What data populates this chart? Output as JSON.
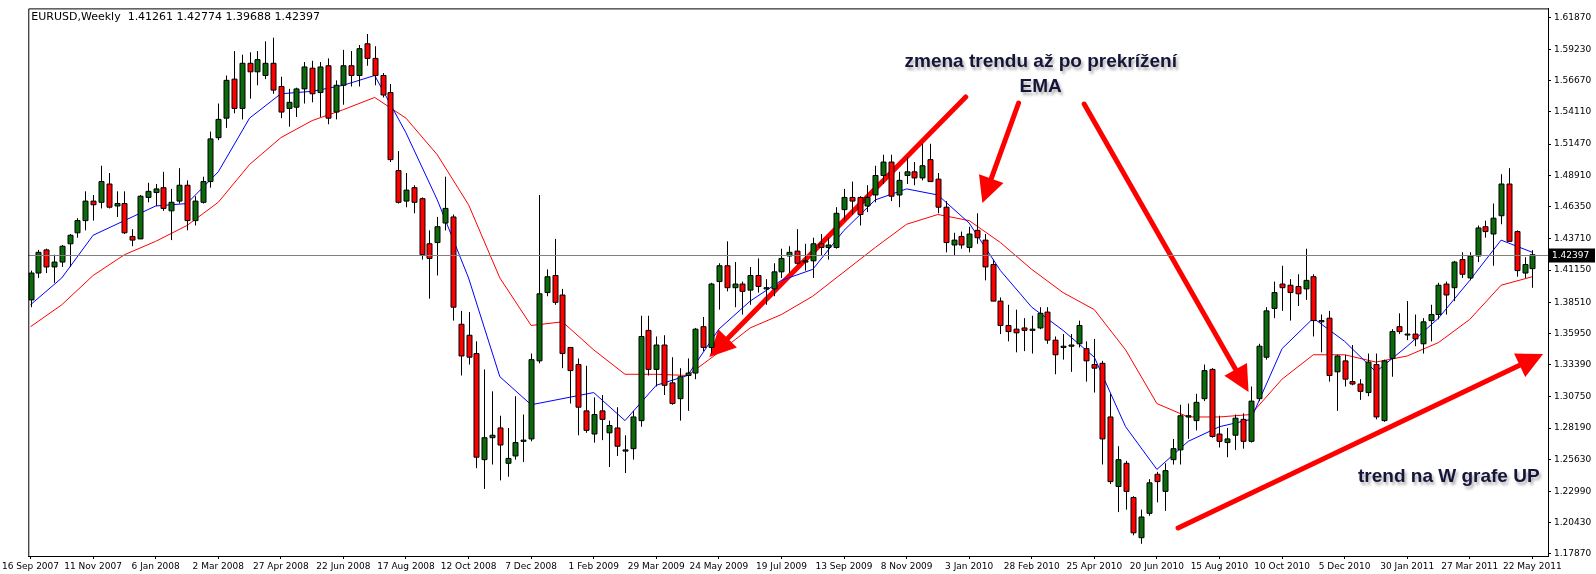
{
  "chart_data": {
    "type": "candlestick",
    "title": "EURUSD,Weekly  1.41261 1.42774 1.39688 1.42397",
    "x": [
      "2007-09-16",
      "2007-09-23",
      "2007-09-30",
      "2007-10-07",
      "2007-10-14",
      "2007-10-21",
      "2007-10-28",
      "2007-11-04",
      "2007-11-11",
      "2007-11-18",
      "2007-11-25",
      "2007-12-02",
      "2007-12-09",
      "2007-12-16",
      "2007-12-23",
      "2007-12-30",
      "2008-01-06",
      "2008-01-13",
      "2008-01-20",
      "2008-01-27",
      "2008-02-03",
      "2008-02-10",
      "2008-02-17",
      "2008-02-24",
      "2008-03-02",
      "2008-03-09",
      "2008-03-16",
      "2008-03-23",
      "2008-03-30",
      "2008-04-06",
      "2008-04-13",
      "2008-04-20",
      "2008-04-27",
      "2008-05-04",
      "2008-05-11",
      "2008-05-18",
      "2008-05-25",
      "2008-06-01",
      "2008-06-08",
      "2008-06-15",
      "2008-06-22",
      "2008-06-29",
      "2008-07-06",
      "2008-07-13",
      "2008-07-20",
      "2008-07-27",
      "2008-08-03",
      "2008-08-10",
      "2008-08-17",
      "2008-08-24",
      "2008-08-31",
      "2008-09-07",
      "2008-09-14",
      "2008-09-21",
      "2008-09-28",
      "2008-10-05",
      "2008-10-12",
      "2008-10-19",
      "2008-10-26",
      "2008-11-02",
      "2008-11-09",
      "2008-11-16",
      "2008-11-23",
      "2008-11-30",
      "2008-12-07",
      "2008-12-14",
      "2008-12-21",
      "2008-12-28",
      "2009-01-04",
      "2009-01-11",
      "2009-01-18",
      "2009-01-25",
      "2009-02-01",
      "2009-02-08",
      "2009-02-15",
      "2009-02-22",
      "2009-03-01",
      "2009-03-08",
      "2009-03-15",
      "2009-03-22",
      "2009-03-29",
      "2009-04-05",
      "2009-04-12",
      "2009-04-19",
      "2009-04-26",
      "2009-05-03",
      "2009-05-10",
      "2009-05-17",
      "2009-05-24",
      "2009-05-31",
      "2009-06-07",
      "2009-06-14",
      "2009-06-21",
      "2009-06-28",
      "2009-07-05",
      "2009-07-12",
      "2009-07-19",
      "2009-07-26",
      "2009-08-02",
      "2009-08-09",
      "2009-08-16",
      "2009-08-23",
      "2009-08-30",
      "2009-09-06",
      "2009-09-13",
      "2009-09-20",
      "2009-09-27",
      "2009-10-04",
      "2009-10-11",
      "2009-10-18",
      "2009-10-25",
      "2009-11-01",
      "2009-11-08",
      "2009-11-15",
      "2009-11-22",
      "2009-11-29",
      "2009-12-06",
      "2009-12-13",
      "2009-12-20",
      "2009-12-27",
      "2010-01-03",
      "2010-01-10",
      "2010-01-17",
      "2010-01-24",
      "2010-01-31",
      "2010-02-07",
      "2010-02-14",
      "2010-02-21",
      "2010-02-28",
      "2010-03-07",
      "2010-03-14",
      "2010-03-21",
      "2010-03-28",
      "2010-04-04",
      "2010-04-11",
      "2010-04-18",
      "2010-04-25",
      "2010-05-02",
      "2010-05-09",
      "2010-05-16",
      "2010-05-23",
      "2010-05-30",
      "2010-06-06",
      "2010-06-13",
      "2010-06-20",
      "2010-06-27",
      "2010-07-04",
      "2010-07-11",
      "2010-07-18",
      "2010-07-25",
      "2010-08-01",
      "2010-08-08",
      "2010-08-15",
      "2010-08-22",
      "2010-08-29",
      "2010-09-05",
      "2010-09-12",
      "2010-09-19",
      "2010-09-26",
      "2010-10-03",
      "2010-10-10",
      "2010-10-17",
      "2010-10-24",
      "2010-10-31",
      "2010-11-07",
      "2010-11-14",
      "2010-11-21",
      "2010-11-28",
      "2010-12-05",
      "2010-12-12",
      "2010-12-19",
      "2010-12-26",
      "2011-01-02",
      "2011-01-09",
      "2011-01-16",
      "2011-01-23",
      "2011-01-30",
      "2011-02-06",
      "2011-02-13",
      "2011-02-20",
      "2011-02-27",
      "2011-03-06",
      "2011-03-13",
      "2011-03-20",
      "2011-03-27",
      "2011-04-03",
      "2011-04-10",
      "2011-04-17",
      "2011-04-24",
      "2011-05-01",
      "2011-05-08",
      "2011-05-15",
      "2011-05-22"
    ],
    "ohlc": [
      [
        1.387,
        1.411,
        1.381,
        1.409
      ],
      [
        1.409,
        1.428,
        1.405,
        1.426
      ],
      [
        1.428,
        1.429,
        1.409,
        1.414
      ],
      [
        1.414,
        1.424,
        1.401,
        1.418
      ],
      [
        1.418,
        1.432,
        1.414,
        1.431
      ],
      [
        1.433,
        1.441,
        1.414,
        1.44
      ],
      [
        1.442,
        1.454,
        1.438,
        1.452
      ],
      [
        1.452,
        1.476,
        1.444,
        1.468
      ],
      [
        1.468,
        1.473,
        1.452,
        1.465
      ],
      [
        1.467,
        1.497,
        1.462,
        1.484
      ],
      [
        1.482,
        1.491,
        1.462,
        1.463
      ],
      [
        1.464,
        1.476,
        1.455,
        1.466
      ],
      [
        1.466,
        1.476,
        1.441,
        1.442
      ],
      [
        1.439,
        1.445,
        1.431,
        1.436
      ],
      [
        1.437,
        1.473,
        1.437,
        1.472
      ],
      [
        1.471,
        1.483,
        1.467,
        1.476
      ],
      [
        1.475,
        1.482,
        1.464,
        1.478
      ],
      [
        1.479,
        1.492,
        1.46,
        1.462
      ],
      [
        1.46,
        1.478,
        1.436,
        1.467
      ],
      [
        1.468,
        1.495,
        1.466,
        1.481
      ],
      [
        1.481,
        1.485,
        1.444,
        1.452
      ],
      [
        1.452,
        1.472,
        1.448,
        1.468
      ],
      [
        1.467,
        1.488,
        1.466,
        1.484
      ],
      [
        1.484,
        1.525,
        1.479,
        1.519
      ],
      [
        1.52,
        1.548,
        1.518,
        1.535
      ],
      [
        1.536,
        1.571,
        1.528,
        1.567
      ],
      [
        1.568,
        1.591,
        1.54,
        1.544
      ],
      [
        1.544,
        1.588,
        1.535,
        1.581
      ],
      [
        1.581,
        1.59,
        1.552,
        1.574
      ],
      [
        1.574,
        1.591,
        1.563,
        1.584
      ],
      [
        1.571,
        1.599,
        1.568,
        1.581
      ],
      [
        1.581,
        1.602,
        1.556,
        1.559
      ],
      [
        1.562,
        1.57,
        1.536,
        1.541
      ],
      [
        1.544,
        1.56,
        1.529,
        1.549
      ],
      [
        1.545,
        1.561,
        1.537,
        1.56
      ],
      [
        1.56,
        1.582,
        1.548,
        1.578
      ],
      [
        1.577,
        1.583,
        1.549,
        1.556
      ],
      [
        1.557,
        1.582,
        1.537,
        1.578
      ],
      [
        1.579,
        1.585,
        1.531,
        1.536
      ],
      [
        1.541,
        1.567,
        1.535,
        1.563
      ],
      [
        1.563,
        1.592,
        1.547,
        1.579
      ],
      [
        1.579,
        1.591,
        1.562,
        1.571
      ],
      [
        1.571,
        1.596,
        1.562,
        1.593
      ],
      [
        1.597,
        1.605,
        1.579,
        1.585
      ],
      [
        1.585,
        1.595,
        1.563,
        1.571
      ],
      [
        1.571,
        1.573,
        1.553,
        1.555
      ],
      [
        1.557,
        1.564,
        1.5,
        1.502
      ],
      [
        1.493,
        1.509,
        1.466,
        1.467
      ],
      [
        1.468,
        1.491,
        1.463,
        1.477
      ],
      [
        1.479,
        1.481,
        1.458,
        1.467
      ],
      [
        1.47,
        1.471,
        1.42,
        1.424
      ],
      [
        1.433,
        1.444,
        1.388,
        1.421
      ],
      [
        1.434,
        1.455,
        1.407,
        1.447
      ],
      [
        1.45,
        1.488,
        1.444,
        1.462
      ],
      [
        1.455,
        1.457,
        1.37,
        1.381
      ],
      [
        1.367,
        1.378,
        1.325,
        1.341
      ],
      [
        1.358,
        1.377,
        1.334,
        1.34
      ],
      [
        1.343,
        1.353,
        1.249,
        1.258
      ],
      [
        1.256,
        1.33,
        1.232,
        1.274
      ],
      [
        1.274,
        1.312,
        1.252,
        1.276
      ],
      [
        1.282,
        1.292,
        1.239,
        1.268
      ],
      [
        1.253,
        1.282,
        1.242,
        1.257
      ],
      [
        1.259,
        1.308,
        1.256,
        1.27
      ],
      [
        1.271,
        1.293,
        1.254,
        1.272
      ],
      [
        1.273,
        1.343,
        1.271,
        1.338
      ],
      [
        1.337,
        1.473,
        1.335,
        1.392
      ],
      [
        1.393,
        1.412,
        1.39,
        1.406
      ],
      [
        1.407,
        1.437,
        1.383,
        1.385
      ],
      [
        1.391,
        1.396,
        1.331,
        1.343
      ],
      [
        1.348,
        1.348,
        1.302,
        1.329
      ],
      [
        1.334,
        1.339,
        1.276,
        1.299
      ],
      [
        1.296,
        1.333,
        1.278,
        1.28
      ],
      [
        1.277,
        1.307,
        1.27,
        1.293
      ],
      [
        1.296,
        1.309,
        1.272,
        1.289
      ],
      [
        1.278,
        1.288,
        1.25,
        1.284
      ],
      [
        1.282,
        1.299,
        1.259,
        1.267
      ],
      [
        1.263,
        1.276,
        1.245,
        1.264
      ],
      [
        1.265,
        1.296,
        1.256,
        1.291
      ],
      [
        1.288,
        1.374,
        1.283,
        1.357
      ],
      [
        1.362,
        1.374,
        1.325,
        1.33
      ],
      [
        1.33,
        1.357,
        1.316,
        1.35
      ],
      [
        1.35,
        1.358,
        1.309,
        1.317
      ],
      [
        1.319,
        1.34,
        1.301,
        1.302
      ],
      [
        1.306,
        1.331,
        1.288,
        1.324
      ],
      [
        1.325,
        1.339,
        1.296,
        1.327
      ],
      [
        1.327,
        1.364,
        1.322,
        1.363
      ],
      [
        1.365,
        1.373,
        1.345,
        1.348
      ],
      [
        1.348,
        1.401,
        1.343,
        1.4
      ],
      [
        1.402,
        1.417,
        1.379,
        1.415
      ],
      [
        1.415,
        1.435,
        1.394,
        1.397
      ],
      [
        1.397,
        1.418,
        1.381,
        1.4
      ],
      [
        1.4,
        1.402,
        1.375,
        1.394
      ],
      [
        1.395,
        1.414,
        1.383,
        1.407
      ],
      [
        1.407,
        1.421,
        1.393,
        1.398
      ],
      [
        1.396,
        1.404,
        1.383,
        1.397
      ],
      [
        1.396,
        1.417,
        1.39,
        1.41
      ],
      [
        1.41,
        1.429,
        1.405,
        1.421
      ],
      [
        1.423,
        1.431,
        1.409,
        1.426
      ],
      [
        1.427,
        1.445,
        1.416,
        1.417
      ],
      [
        1.418,
        1.433,
        1.411,
        1.419
      ],
      [
        1.419,
        1.438,
        1.405,
        1.433
      ],
      [
        1.433,
        1.441,
        1.423,
        1.43
      ],
      [
        1.43,
        1.438,
        1.42,
        1.432
      ],
      [
        1.43,
        1.463,
        1.429,
        1.458
      ],
      [
        1.461,
        1.478,
        1.452,
        1.471
      ],
      [
        1.471,
        1.484,
        1.457,
        1.468
      ],
      [
        1.471,
        1.472,
        1.448,
        1.457
      ],
      [
        1.464,
        1.481,
        1.459,
        1.471
      ],
      [
        1.473,
        1.497,
        1.467,
        1.489
      ],
      [
        1.489,
        1.506,
        1.482,
        1.5
      ],
      [
        1.5,
        1.506,
        1.468,
        1.472
      ],
      [
        1.473,
        1.492,
        1.463,
        1.485
      ],
      [
        1.489,
        1.504,
        1.482,
        1.492
      ],
      [
        1.492,
        1.5,
        1.481,
        1.487
      ],
      [
        1.487,
        1.515,
        1.485,
        1.497
      ],
      [
        1.502,
        1.515,
        1.484,
        1.484
      ],
      [
        1.486,
        1.491,
        1.458,
        1.463
      ],
      [
        1.463,
        1.468,
        1.426,
        1.434
      ],
      [
        1.432,
        1.442,
        1.423,
        1.436
      ],
      [
        1.439,
        1.443,
        1.429,
        1.432
      ],
      [
        1.43,
        1.447,
        1.426,
        1.441
      ],
      [
        1.444,
        1.458,
        1.433,
        1.438
      ],
      [
        1.436,
        1.441,
        1.403,
        1.414
      ],
      [
        1.416,
        1.42,
        1.386,
        1.386
      ],
      [
        1.386,
        1.389,
        1.359,
        1.366
      ],
      [
        1.366,
        1.383,
        1.353,
        1.361
      ],
      [
        1.363,
        1.379,
        1.344,
        1.36
      ],
      [
        1.364,
        1.372,
        1.345,
        1.362
      ],
      [
        1.362,
        1.374,
        1.343,
        1.363
      ],
      [
        1.364,
        1.381,
        1.363,
        1.376
      ],
      [
        1.377,
        1.381,
        1.351,
        1.354
      ],
      [
        1.354,
        1.357,
        1.326,
        1.342
      ],
      [
        1.348,
        1.359,
        1.338,
        1.349
      ],
      [
        1.349,
        1.359,
        1.328,
        1.35
      ],
      [
        1.351,
        1.37,
        1.348,
        1.366
      ],
      [
        1.347,
        1.353,
        1.32,
        1.337
      ],
      [
        1.334,
        1.355,
        1.311,
        1.331
      ],
      [
        1.335,
        1.337,
        1.252,
        1.273
      ],
      [
        1.291,
        1.31,
        1.236,
        1.238
      ],
      [
        1.234,
        1.267,
        1.213,
        1.256
      ],
      [
        1.253,
        1.255,
        1.215,
        1.23
      ],
      [
        1.225,
        1.226,
        1.194,
        1.196
      ],
      [
        1.192,
        1.215,
        1.187,
        1.209
      ],
      [
        1.212,
        1.24,
        1.21,
        1.237
      ],
      [
        1.244,
        1.246,
        1.221,
        1.238
      ],
      [
        1.23,
        1.253,
        1.214,
        1.247
      ],
      [
        1.256,
        1.273,
        1.252,
        1.265
      ],
      [
        1.264,
        1.301,
        1.252,
        1.292
      ],
      [
        1.291,
        1.302,
        1.273,
        1.292
      ],
      [
        1.288,
        1.31,
        1.28,
        1.303
      ],
      [
        1.306,
        1.334,
        1.304,
        1.329
      ],
      [
        1.33,
        1.331,
        1.274,
        1.275
      ],
      [
        1.277,
        1.292,
        1.266,
        1.271
      ],
      [
        1.27,
        1.282,
        1.258,
        1.273
      ],
      [
        1.276,
        1.293,
        1.264,
        1.29
      ],
      [
        1.289,
        1.294,
        1.265,
        1.271
      ],
      [
        1.271,
        1.316,
        1.27,
        1.304
      ],
      [
        1.306,
        1.351,
        1.304,
        1.349
      ],
      [
        1.34,
        1.381,
        1.338,
        1.378
      ],
      [
        1.38,
        1.402,
        1.372,
        1.393
      ],
      [
        1.4,
        1.415,
        1.378,
        1.397
      ],
      [
        1.399,
        1.404,
        1.37,
        1.393
      ],
      [
        1.398,
        1.408,
        1.382,
        1.392
      ],
      [
        1.396,
        1.429,
        1.387,
        1.403
      ],
      [
        1.406,
        1.408,
        1.357,
        1.37
      ],
      [
        1.37,
        1.375,
        1.344,
        1.369
      ],
      [
        1.372,
        1.378,
        1.32,
        1.325
      ],
      [
        1.328,
        1.342,
        1.296,
        1.341
      ],
      [
        1.337,
        1.342,
        1.316,
        1.322
      ],
      [
        1.32,
        1.35,
        1.317,
        1.318
      ],
      [
        1.318,
        1.322,
        1.305,
        1.312
      ],
      [
        1.311,
        1.343,
        1.308,
        1.336
      ],
      [
        1.334,
        1.343,
        1.289,
        1.291
      ],
      [
        1.288,
        1.338,
        1.287,
        1.337
      ],
      [
        1.339,
        1.363,
        1.324,
        1.361
      ],
      [
        1.365,
        1.376,
        1.359,
        1.361
      ],
      [
        1.359,
        1.386,
        1.354,
        1.359
      ],
      [
        1.359,
        1.375,
        1.349,
        1.355
      ],
      [
        1.351,
        1.372,
        1.343,
        1.369
      ],
      [
        1.37,
        1.383,
        1.353,
        1.375
      ],
      [
        1.375,
        1.401,
        1.371,
        1.399
      ],
      [
        1.4,
        1.402,
        1.375,
        1.391
      ],
      [
        1.397,
        1.419,
        1.386,
        1.418
      ],
      [
        1.42,
        1.426,
        1.405,
        1.408
      ],
      [
        1.405,
        1.426,
        1.403,
        1.423
      ],
      [
        1.423,
        1.448,
        1.418,
        1.446
      ],
      [
        1.447,
        1.452,
        1.438,
        1.443
      ],
      [
        1.441,
        1.466,
        1.415,
        1.454
      ],
      [
        1.456,
        1.49,
        1.449,
        1.482
      ],
      [
        1.482,
        1.495,
        1.435,
        1.435
      ],
      [
        1.443,
        1.444,
        1.406,
        1.411
      ],
      [
        1.409,
        1.422,
        1.405,
        1.416
      ],
      [
        1.4126,
        1.4277,
        1.3969,
        1.424
      ]
    ],
    "colors": [
      "#0b6b0b",
      "#0b6b0b",
      "#ff0000",
      "#0b6b0b",
      "#0b6b0b",
      "#0b6b0b",
      "#0b6b0b",
      "#0b6b0b",
      "#ff0000",
      "#0b6b0b",
      "#ff0000",
      "#0b6b0b",
      "#ff0000",
      "#ff0000",
      "#0b6b0b",
      "#0b6b0b",
      "#0b6b0b",
      "#ff0000",
      "#0b6b0b",
      "#0b6b0b",
      "#ff0000",
      "#0b6b0b",
      "#0b6b0b",
      "#0b6b0b",
      "#0b6b0b",
      "#0b6b0b",
      "#ff0000",
      "#0b6b0b",
      "#ff0000",
      "#0b6b0b",
      "#0b6b0b",
      "#ff0000",
      "#ff0000",
      "#0b6b0b",
      "#0b6b0b",
      "#0b6b0b",
      "#ff0000",
      "#0b6b0b",
      "#ff0000",
      "#0b6b0b",
      "#0b6b0b",
      "#ff0000",
      "#0b6b0b",
      "#ff0000",
      "#ff0000",
      "#ff0000",
      "#ff0000",
      "#ff0000",
      "#0b6b0b",
      "#ff0000",
      "#ff0000",
      "#ff0000",
      "#0b6b0b",
      "#0b6b0b",
      "#ff0000",
      "#ff0000",
      "#ff0000",
      "#ff0000",
      "#0b6b0b",
      "#0b6b0b",
      "#ff0000",
      "#0b6b0b",
      "#0b6b0b",
      "#0b6b0b",
      "#0b6b0b",
      "#0b6b0b",
      "#0b6b0b",
      "#ff0000",
      "#ff0000",
      "#ff0000",
      "#ff0000",
      "#ff0000",
      "#0b6b0b",
      "#ff0000",
      "#0b6b0b",
      "#ff0000",
      "#0b6b0b",
      "#0b6b0b",
      "#0b6b0b",
      "#ff0000",
      "#0b6b0b",
      "#ff0000",
      "#ff0000",
      "#0b6b0b",
      "#0b6b0b",
      "#0b6b0b",
      "#ff0000",
      "#0b6b0b",
      "#0b6b0b",
      "#ff0000",
      "#0b6b0b",
      "#ff0000",
      "#0b6b0b",
      "#ff0000",
      "#0b6b0b",
      "#0b6b0b",
      "#0b6b0b",
      "#0b6b0b",
      "#ff0000",
      "#0b6b0b",
      "#0b6b0b",
      "#ff0000",
      "#0b6b0b",
      "#0b6b0b",
      "#0b6b0b",
      "#ff0000",
      "#ff0000",
      "#0b6b0b",
      "#0b6b0b",
      "#0b6b0b",
      "#ff0000",
      "#0b6b0b",
      "#0b6b0b",
      "#ff0000",
      "#0b6b0b",
      "#ff0000",
      "#ff0000",
      "#ff0000",
      "#0b6b0b",
      "#ff0000",
      "#0b6b0b",
      "#ff0000",
      "#ff0000",
      "#ff0000",
      "#ff0000",
      "#ff0000",
      "#ff0000",
      "#ff0000",
      "#0b6b0b",
      "#0b6b0b",
      "#ff0000",
      "#ff0000",
      "#0b6b0b",
      "#0b6b0b",
      "#0b6b0b",
      "#ff0000",
      "#ff0000",
      "#ff0000",
      "#ff0000",
      "#0b6b0b",
      "#ff0000",
      "#ff0000",
      "#0b6b0b",
      "#0b6b0b",
      "#ff0000",
      "#0b6b0b",
      "#0b6b0b",
      "#0b6b0b",
      "#0b6b0b",
      "#0b6b0b",
      "#0b6b0b",
      "#ff0000",
      "#ff0000",
      "#0b6b0b",
      "#0b6b0b",
      "#ff0000",
      "#0b6b0b",
      "#0b6b0b",
      "#0b6b0b",
      "#0b6b0b",
      "#ff0000",
      "#ff0000",
      "#ff0000",
      "#0b6b0b",
      "#ff0000",
      "#ff0000",
      "#ff0000",
      "#0b6b0b",
      "#ff0000",
      "#ff0000",
      "#ff0000",
      "#0b6b0b",
      "#ff0000",
      "#0b6b0b",
      "#0b6b0b",
      "#ff0000",
      "#0b6b0b",
      "#ff0000",
      "#0b6b0b",
      "#0b6b0b",
      "#0b6b0b",
      "#ff0000",
      "#0b6b0b",
      "#ff0000",
      "#0b6b0b",
      "#0b6b0b",
      "#ff0000",
      "#0b6b0b",
      "#0b6b0b",
      "#ff0000",
      "#ff0000",
      "#0b6b0b",
      "#0b6b0b"
    ],
    "series": [
      {
        "type": "line",
        "color": "#0000ff",
        "x": [
          "2007-09-16",
          "2007-10-14",
          "2007-11-11",
          "2007-12-09",
          "2008-01-06",
          "2008-02-03",
          "2008-03-02",
          "2008-03-30",
          "2008-04-27",
          "2008-05-25",
          "2008-06-22",
          "2008-07-20",
          "2008-08-17",
          "2008-09-14",
          "2008-10-12",
          "2008-11-09",
          "2008-12-07",
          "2009-01-04",
          "2009-02-01",
          "2009-03-01",
          "2009-03-29",
          "2009-04-26",
          "2009-05-24",
          "2009-06-21",
          "2009-07-19",
          "2009-08-16",
          "2009-09-13",
          "2009-10-11",
          "2009-11-08",
          "2009-12-06",
          "2010-01-03",
          "2010-01-31",
          "2010-02-28",
          "2010-03-28",
          "2010-04-25",
          "2010-05-23",
          "2010-06-20",
          "2010-07-18",
          "2010-08-15",
          "2010-09-12",
          "2010-10-10",
          "2010-11-07",
          "2010-12-05",
          "2011-01-02",
          "2011-01-30",
          "2011-02-27",
          "2011-03-27",
          "2011-04-24",
          "2011-05-22"
        ],
        "values": [
          1.383,
          1.405,
          1.44,
          1.452,
          1.464,
          1.466,
          1.492,
          1.536,
          1.556,
          1.558,
          1.563,
          1.571,
          1.524,
          1.469,
          1.405,
          1.324,
          1.301,
          null,
          1.311,
          1.288,
          1.317,
          1.325,
          1.363,
          1.386,
          1.403,
          1.412,
          1.444,
          1.469,
          1.478,
          1.473,
          1.45,
          1.411,
          1.381,
          1.362,
          1.34,
          1.283,
          1.248,
          1.271,
          1.283,
          1.289,
          1.347,
          1.372,
          1.353,
          1.328,
          1.349,
          1.372,
          1.403,
          1.436,
          1.426
        ]
      },
      {
        "type": "line",
        "color": "#ff0000",
        "x": [
          "2007-09-16",
          "2007-10-14",
          "2007-11-11",
          "2007-12-09",
          "2008-01-06",
          "2008-02-03",
          "2008-03-02",
          "2008-03-30",
          "2008-04-27",
          "2008-05-25",
          "2008-06-22",
          "2008-07-20",
          "2008-08-17",
          "2008-09-14",
          "2008-10-12",
          "2008-11-09",
          "2008-12-07",
          "2009-01-04",
          "2009-02-01",
          "2009-03-01",
          "2009-03-29",
          "2009-04-26",
          "2009-05-24",
          "2009-06-21",
          "2009-07-19",
          "2009-08-16",
          "2009-09-13",
          "2009-10-11",
          "2009-11-08",
          "2009-12-06",
          "2010-01-03",
          "2010-01-31",
          "2010-02-28",
          "2010-03-28",
          "2010-04-25",
          "2010-05-23",
          "2010-06-20",
          "2010-07-18",
          "2010-08-15",
          "2010-09-12",
          "2010-10-10",
          "2010-11-07",
          "2010-12-05",
          "2011-01-02",
          "2011-01-30",
          "2011-02-27",
          "2011-03-27",
          "2011-04-24",
          "2011-05-22"
        ],
        "values": [
          1.365,
          1.383,
          1.407,
          1.424,
          1.435,
          1.448,
          1.467,
          1.498,
          1.52,
          1.534,
          1.543,
          1.553,
          1.536,
          1.506,
          1.465,
          1.405,
          1.366,
          1.369,
          1.346,
          1.326,
          1.326,
          1.325,
          1.344,
          1.364,
          1.375,
          1.39,
          1.41,
          1.43,
          1.449,
          1.457,
          1.452,
          1.434,
          1.412,
          1.393,
          1.379,
          1.346,
          1.302,
          1.291,
          1.291,
          1.293,
          1.322,
          1.342,
          1.342,
          1.336,
          1.341,
          1.352,
          1.371,
          1.399,
          1.406
        ]
      }
    ],
    "xlim": [
      "2007-09-14",
      "2011-06-05"
    ],
    "xticks": [
      {
        "value": "2007-09-16",
        "label": "16 Sep 2007"
      },
      {
        "value": "2007-11-11",
        "label": "11 Nov 2007"
      },
      {
        "value": "2008-01-06",
        "label": "6 Jan 2008"
      },
      {
        "value": "2008-03-02",
        "label": "2 Mar 2008"
      },
      {
        "value": "2008-04-27",
        "label": "27 Apr 2008"
      },
      {
        "value": "2008-06-22",
        "label": "22 Jun 2008"
      },
      {
        "value": "2008-08-17",
        "label": "17 Aug 2008"
      },
      {
        "value": "2008-10-12",
        "label": "12 Oct 2008"
      },
      {
        "value": "2008-12-07",
        "label": "7 Dec 2008"
      },
      {
        "value": "2009-02-01",
        "label": "1 Feb 2009"
      },
      {
        "value": "2009-03-29",
        "label": "29 Mar 2009"
      },
      {
        "value": "2009-05-24",
        "label": "24 May 2009"
      },
      {
        "value": "2009-07-19",
        "label": "19 Jul 2009"
      },
      {
        "value": "2009-09-13",
        "label": "13 Sep 2009"
      },
      {
        "value": "2009-11-08",
        "label": "8 Nov 2009"
      },
      {
        "value": "2010-01-03",
        "label": "3 Jan 2010"
      },
      {
        "value": "2010-02-28",
        "label": "28 Feb 2010"
      },
      {
        "value": "2010-04-25",
        "label": "25 Apr 2010"
      },
      {
        "value": "2010-06-20",
        "label": "20 Jun 2010"
      },
      {
        "value": "2010-08-15",
        "label": "15 Aug 2010"
      },
      {
        "value": "2010-10-10",
        "label": "10 Oct 2010"
      },
      {
        "value": "2010-12-05",
        "label": "5 Dec 2010"
      },
      {
        "value": "2011-01-30",
        "label": "30 Jan 2011"
      },
      {
        "value": "2011-03-27",
        "label": "27 Mar 2011"
      },
      {
        "value": "2011-05-22",
        "label": "22 May 2011"
      }
    ],
    "ylim": [
      1.177,
      1.626
    ],
    "yticks": [
      {
        "value": 1.6187,
        "label": "1.61870"
      },
      {
        "value": 1.5923,
        "label": "1.59230"
      },
      {
        "value": 1.5667,
        "label": "1.56670"
      },
      {
        "value": 1.5411,
        "label": "1.54110"
      },
      {
        "value": 1.5147,
        "label": "1.51470"
      },
      {
        "value": 1.4891,
        "label": "1.48910"
      },
      {
        "value": 1.4635,
        "label": "1.46350"
      },
      {
        "value": 1.4371,
        "label": "1.43710"
      },
      {
        "value": 1.4115,
        "label": "1.41150"
      },
      {
        "value": 1.3851,
        "label": "1.38510"
      },
      {
        "value": 1.3595,
        "label": "1.35950"
      },
      {
        "value": 1.3339,
        "label": "1.33390"
      },
      {
        "value": 1.3075,
        "label": "1.30750"
      },
      {
        "value": 1.2819,
        "label": "1.28190"
      },
      {
        "value": 1.2563,
        "label": "1.25630"
      },
      {
        "value": 1.2299,
        "label": "1.22990"
      },
      {
        "value": 1.2043,
        "label": "1.20430"
      },
      {
        "value": 1.1787,
        "label": "1.17870"
      }
    ],
    "ref_lines": [
      {
        "axis": "y",
        "value": 1.42397,
        "label": "1.42397",
        "color": "#808080"
      }
    ],
    "annotations": [
      "zmena trendu až po prekrížení EMA",
      "trend na W grafe UP"
    ],
    "legend": false,
    "grid": false,
    "marker": "none",
    "line_style": "solid"
  }
}
